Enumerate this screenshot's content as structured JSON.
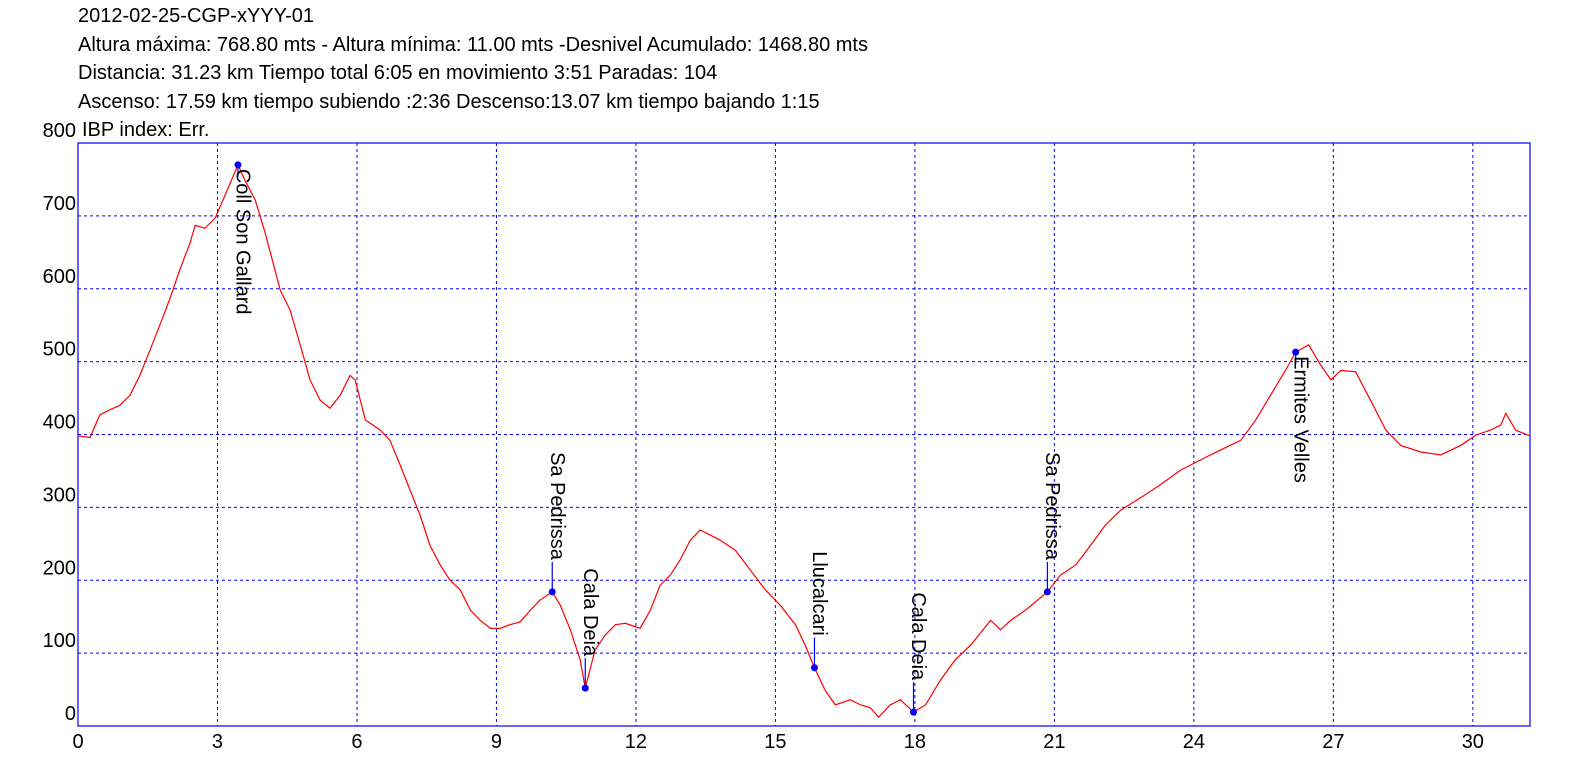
{
  "chart_data": {
    "type": "line",
    "title": "2012-02-25-CGP-xYYY-01",
    "subtitles": [
      "Altura máxima: 768.80 mts - Altura mínima: 11.00 mts -Desnivel Acumulado: 1468.80 mts",
      "Distancia: 31.23 km  Tiempo total 6:05  en movimiento 3:51 Paradas: 104",
      "Ascenso: 17.59 km  tiempo subiendo :2:36  Descenso:13.07 km tiempo bajando 1:15",
      "IBP index: Err."
    ],
    "color": "#ff0000",
    "axis_color": "#0000ff",
    "grid": true,
    "xlim": [
      0,
      31.23
    ],
    "ylim": [
      0,
      800
    ],
    "xticks": [
      0,
      3,
      6,
      9,
      12,
      15,
      18,
      21,
      24,
      27,
      30
    ],
    "yticks": [
      0,
      100,
      200,
      300,
      400,
      500,
      600,
      700,
      800
    ],
    "x": [
      0,
      0.26,
      0.47,
      0.69,
      0.9,
      1.12,
      1.33,
      1.55,
      1.76,
      1.98,
      2.19,
      2.41,
      2.52,
      2.73,
      2.95,
      3.16,
      3.44,
      3.59,
      3.81,
      4.02,
      4.35,
      4.56,
      4.78,
      4.99,
      5.21,
      5.42,
      5.64,
      5.85,
      5.96,
      6.18,
      6.5,
      6.71,
      6.93,
      7.14,
      7.36,
      7.57,
      7.79,
      8.0,
      8.22,
      8.44,
      8.65,
      8.87,
      9.08,
      9.29,
      9.51,
      9.73,
      9.94,
      10.2,
      10.37,
      10.59,
      10.8,
      10.91,
      11.12,
      11.34,
      11.56,
      11.77,
      12.09,
      12.31,
      12.52,
      12.74,
      12.95,
      13.17,
      13.38,
      13.6,
      13.81,
      14.14,
      14.46,
      14.78,
      15.1,
      15.43,
      15.64,
      15.84,
      16.07,
      16.29,
      16.61,
      16.83,
      17.04,
      17.22,
      17.47,
      17.69,
      17.97,
      18.23,
      18.55,
      18.87,
      19.2,
      19.63,
      19.84,
      20.06,
      20.38,
      20.85,
      21.13,
      21.46,
      21.78,
      22.1,
      22.42,
      22.85,
      23.28,
      23.71,
      24.14,
      24.58,
      25.01,
      25.33,
      25.65,
      25.97,
      26.19,
      26.47,
      26.73,
      26.95,
      27.16,
      27.48,
      27.8,
      28.13,
      28.45,
      28.88,
      29.31,
      29.74,
      30.06,
      30.38,
      30.6,
      30.71,
      30.92,
      31.23
    ],
    "values": [
      398,
      396,
      427,
      434,
      440,
      454,
      481,
      516,
      550,
      587,
      626,
      663,
      687,
      683,
      697,
      728,
      770,
      749,
      722,
      678,
      598,
      571,
      523,
      475,
      447,
      436,
      454,
      481,
      475,
      420,
      406,
      392,
      358,
      324,
      289,
      248,
      221,
      200,
      187,
      159,
      145,
      134,
      134,
      139,
      143,
      159,
      173,
      184,
      166,
      132,
      91,
      52,
      104,
      125,
      139,
      141,
      134,
      159,
      193,
      207,
      228,
      255,
      269,
      262,
      255,
      241,
      214,
      187,
      166,
      139,
      111,
      80,
      49,
      29,
      36,
      29,
      25,
      12,
      29,
      36,
      19,
      29,
      63,
      91,
      111,
      145,
      132,
      145,
      159,
      184,
      207,
      221,
      248,
      276,
      296,
      313,
      331,
      351,
      365,
      379,
      392,
      420,
      454,
      488,
      513,
      523,
      495,
      475,
      488,
      486,
      447,
      406,
      385,
      376,
      372,
      385,
      399,
      406,
      413,
      429,
      406,
      398
    ],
    "waypoints": [
      {
        "label": "Coll Son Gallard",
        "x": 3.44,
        "y": 770
      },
      {
        "label": "Sa Pedrissa",
        "x": 10.2,
        "y": 184
      },
      {
        "label": "Cala Deia",
        "x": 10.91,
        "y": 52
      },
      {
        "label": "Llucalcari",
        "x": 15.84,
        "y": 80
      },
      {
        "label": "Cala Deia",
        "x": 17.97,
        "y": 19
      },
      {
        "label": "Sa Pedrissa",
        "x": 20.85,
        "y": 184
      },
      {
        "label": "Ermites Velles",
        "x": 26.19,
        "y": 513
      }
    ]
  }
}
